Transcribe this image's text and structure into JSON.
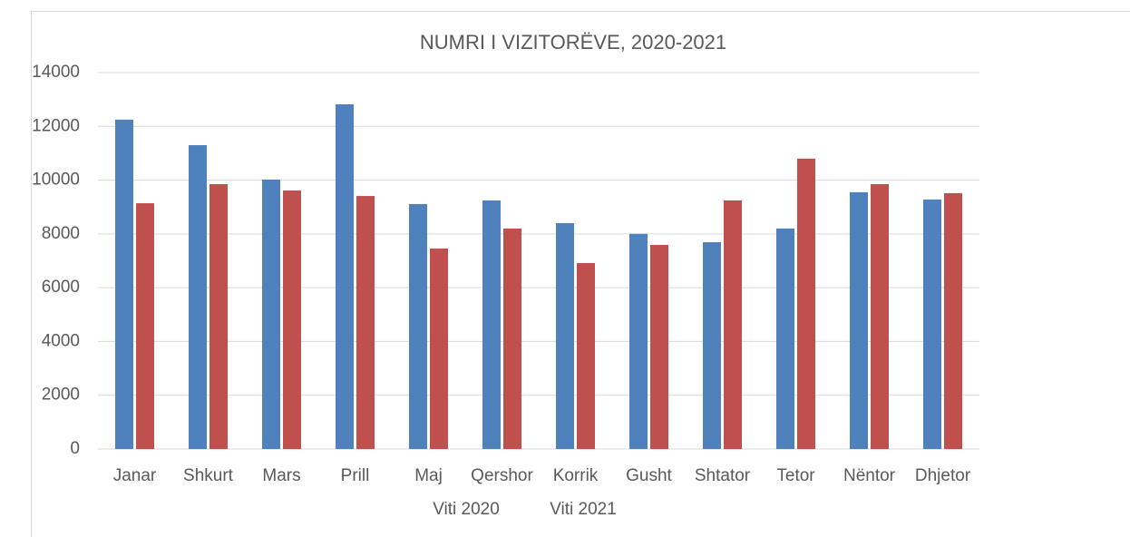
{
  "chart_data": {
    "type": "bar",
    "title": "NUMRI I VIZITORËVE, 2020-2021",
    "categories": [
      "Janar",
      "Shkurt",
      "Mars",
      "Prill",
      "Maj",
      "Qershor",
      "Korrik",
      "Gusht",
      "Shtator",
      "Tetor",
      "Nëntor",
      "Dhjetor"
    ],
    "series": [
      {
        "name": "Viti 2020",
        "color": "#4f81bd",
        "values": [
          12250,
          11300,
          10020,
          12820,
          9110,
          9245,
          8400,
          8000,
          7690,
          8200,
          9550,
          9280
        ]
      },
      {
        "name": "Viti 2021",
        "color": "#c0504d",
        "values": [
          9140,
          9850,
          9615,
          9410,
          7455,
          8200,
          6915,
          7590,
          9245,
          10800,
          9850,
          9515
        ]
      }
    ],
    "ylim": [
      0,
      14000
    ],
    "yticks": [
      0,
      2000,
      4000,
      6000,
      8000,
      10000,
      12000,
      14000
    ],
    "grid": true,
    "legend": "bottom"
  }
}
